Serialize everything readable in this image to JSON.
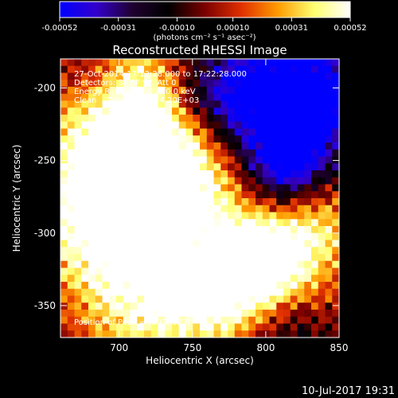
{
  "colorbar": {
    "tick_labels": [
      "-0.00052",
      "-0.00031",
      "-0.00010",
      "0.00010",
      "0.00031",
      "0.00052"
    ],
    "tick_values": [
      -0.00052,
      -0.00031,
      -0.0001,
      0.0001,
      0.00031,
      0.00052
    ],
    "unit_label": "(photons cm⁻² s⁻¹ asec⁻²)",
    "colors": [
      "#0000ff",
      "#3300cc",
      "#200030",
      "#000000",
      "#7a0000",
      "#e03000",
      "#ff9a00",
      "#ffff70",
      "#ffffff"
    ]
  },
  "chart_data": {
    "type": "heatmap",
    "title": "Reconstructed RHESSI Image",
    "xlabel": "Heliocentric X (arcsec)",
    "ylabel": "Heliocentric Y (arcsec)",
    "xlim": [
      660,
      850
    ],
    "ylim": [
      -372,
      -180
    ],
    "x_ticks": [
      700,
      750,
      800,
      850
    ],
    "y_ticks": [
      -200,
      -250,
      -300,
      -350
    ],
    "x_tick_labels": [
      "700",
      "750",
      "800",
      "850"
    ],
    "y_tick_labels": [
      "-200",
      "-250",
      "-300",
      "-350"
    ],
    "peak_position": [
      802,
      -323
    ],
    "info_lines": [
      "27-Oct-2014 17:12:28.000 to 17:22:28.000",
      "Detectors: 3F 6F 9F, Att 0",
      "Energy Range: 25.0 - 50.0 keV",
      "Clean    Total counts: 4.20E+03"
    ],
    "peak_label": "Position of Peak = [802,-323]"
  },
  "footer": {
    "timestamp": "10-Jul-2017 19:31"
  }
}
